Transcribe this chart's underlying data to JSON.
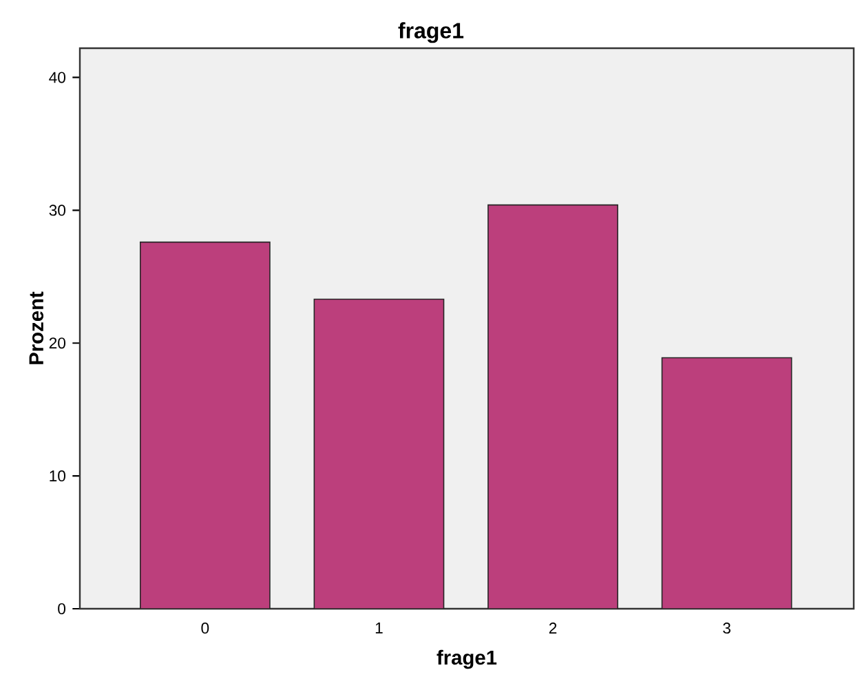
{
  "chart_data": {
    "type": "bar",
    "title": "frage1",
    "xlabel": "frage1",
    "ylabel": "Prozent",
    "categories": [
      "0",
      "1",
      "2",
      "3"
    ],
    "values": [
      27.6,
      23.3,
      30.4,
      18.9
    ],
    "color": "#bc3f7c",
    "ylim": [
      0,
      42.2
    ],
    "yticks": [
      0,
      10,
      20,
      30,
      40
    ],
    "grid": false
  }
}
